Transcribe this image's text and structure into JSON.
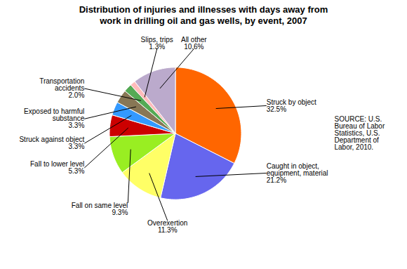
{
  "chart_data": {
    "type": "pie",
    "title": "Distribution of injuries and illnesses with days away from\nwork in drilling  oil and gas wells, by event, 2007",
    "categories": [
      "Struck by object",
      "Caught in object,\nequipment, material",
      "Overexertion",
      "Fall on same level",
      "Fall to lower level",
      "Struck against object",
      "Exposed to harmful\nsubstance",
      "Transportation\naccidents",
      "Slips, trips",
      "All other"
    ],
    "values": [
      32.5,
      21.2,
      11.3,
      9.3,
      5.3,
      3.3,
      3.3,
      2.0,
      1.3,
      10.6
    ],
    "value_labels": [
      "32.5%",
      "21.2%",
      "11.3%",
      "9.3%",
      "5.3%",
      "3.3%",
      "3.3%",
      "2.0%",
      "1.3%",
      "10.6%"
    ],
    "colors": [
      "#FF6600",
      "#6666EE",
      "#FFFF66",
      "#99EE22",
      "#CC0000",
      "#3399FF",
      "#887755",
      "#55AA55",
      "#FFBBBB",
      "#BBAACC"
    ],
    "data_labels": true,
    "annotations": [
      "SOURCE: U.S.\nBureau of Labor\nStatistics, U.S.\nDepartment of\nLabor, 2010."
    ]
  }
}
